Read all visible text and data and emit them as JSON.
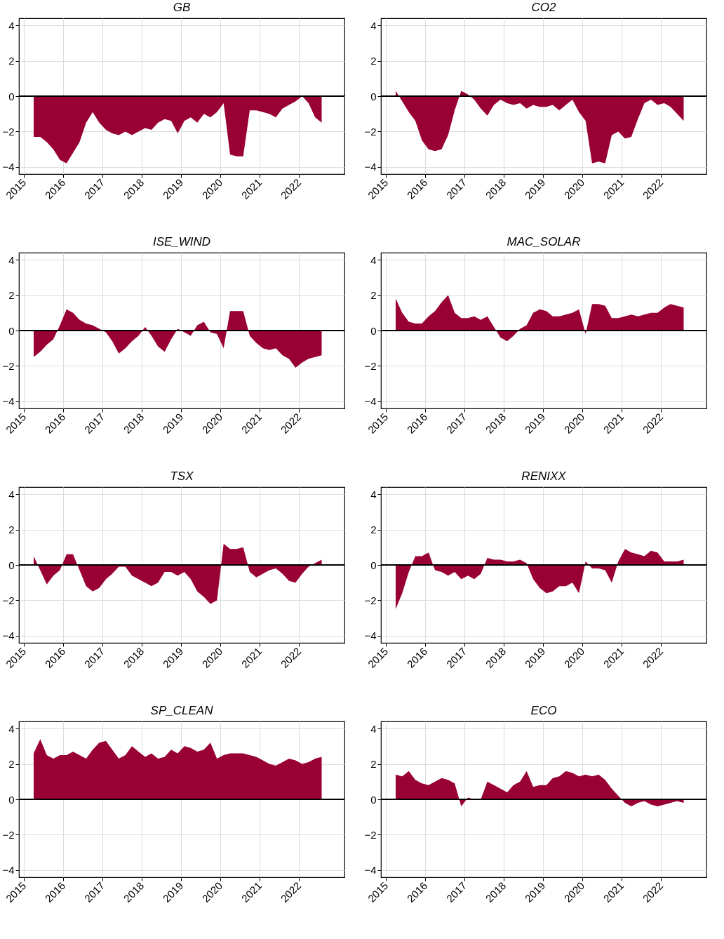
{
  "chart_data": [
    {
      "type": "area",
      "title": "GB",
      "x": [
        "2015-04",
        "2015-06",
        "2015-08",
        "2015-10",
        "2015-12",
        "2016-02",
        "2016-04",
        "2016-06",
        "2016-08",
        "2016-10",
        "2016-12",
        "2017-02",
        "2017-04",
        "2017-06",
        "2017-08",
        "2017-10",
        "2017-12",
        "2018-02",
        "2018-04",
        "2018-06",
        "2018-08",
        "2018-10",
        "2018-12",
        "2019-02",
        "2019-04",
        "2019-06",
        "2019-08",
        "2019-10",
        "2019-12",
        "2020-02",
        "2020-04",
        "2020-06",
        "2020-08",
        "2020-10",
        "2020-12",
        "2021-02",
        "2021-04",
        "2021-06",
        "2021-08",
        "2021-10",
        "2021-12",
        "2022-02",
        "2022-04",
        "2022-06",
        "2022-08"
      ],
      "series": [
        {
          "color": "#990033",
          "values": [
            -2.3,
            -2.3,
            -2.6,
            -3.0,
            -3.6,
            -3.8,
            -3.2,
            -2.6,
            -1.5,
            -0.9,
            -1.5,
            -1.9,
            -2.1,
            -2.2,
            -2.0,
            -2.2,
            -2.0,
            -1.8,
            -1.9,
            -1.5,
            -1.3,
            -1.4,
            -2.1,
            -1.4,
            -1.2,
            -1.5,
            -1.0,
            -1.2,
            -0.9,
            -0.4,
            -3.3,
            -3.4,
            -3.4,
            -0.8,
            -0.8,
            -0.9,
            -1.0,
            -1.2,
            -0.7,
            -0.5,
            -0.3,
            0.0,
            -0.4,
            -1.2,
            -1.5
          ]
        }
      ],
      "xlim": [
        "2014-11-15",
        "2023-03-01"
      ],
      "xticks": [
        "2015",
        "2016",
        "2017",
        "2018",
        "2019",
        "2020",
        "2021",
        "2022"
      ],
      "ylim": [
        -4.4,
        4.4
      ],
      "yticks": [
        -4,
        -2,
        0,
        2,
        4
      ],
      "grid": true,
      "ref_lines": [
        {
          "axis": "y",
          "value": 0,
          "color": "#000000"
        }
      ]
    },
    {
      "type": "area",
      "title": "CO2",
      "x": [
        "2015-04",
        "2015-06",
        "2015-08",
        "2015-10",
        "2015-12",
        "2016-02",
        "2016-04",
        "2016-06",
        "2016-08",
        "2016-10",
        "2016-12",
        "2017-02",
        "2017-04",
        "2017-06",
        "2017-08",
        "2017-10",
        "2017-12",
        "2018-02",
        "2018-04",
        "2018-06",
        "2018-08",
        "2018-10",
        "2018-12",
        "2019-02",
        "2019-04",
        "2019-06",
        "2019-08",
        "2019-10",
        "2019-12",
        "2020-02",
        "2020-04",
        "2020-06",
        "2020-08",
        "2020-10",
        "2020-12",
        "2021-02",
        "2021-04",
        "2021-06",
        "2021-08",
        "2021-10",
        "2021-12",
        "2022-02",
        "2022-04",
        "2022-06",
        "2022-08"
      ],
      "series": [
        {
          "color": "#990033",
          "values": [
            0.3,
            -0.3,
            -0.9,
            -1.4,
            -2.5,
            -3.0,
            -3.1,
            -3.0,
            -2.2,
            -0.8,
            0.3,
            0.1,
            -0.2,
            -0.7,
            -1.1,
            -0.5,
            -0.2,
            -0.4,
            -0.5,
            -0.4,
            -0.7,
            -0.5,
            -0.6,
            -0.6,
            -0.5,
            -0.8,
            -0.5,
            -0.2,
            -0.9,
            -1.4,
            -3.8,
            -3.7,
            -3.8,
            -2.2,
            -2.0,
            -2.4,
            -2.3,
            -1.3,
            -0.4,
            -0.2,
            -0.5,
            -0.4,
            -0.6,
            -1.0,
            -1.4
          ]
        }
      ],
      "xlim": [
        "2014-11-15",
        "2023-03-01"
      ],
      "xticks": [
        "2015",
        "2016",
        "2017",
        "2018",
        "2019",
        "2020",
        "2021",
        "2022"
      ],
      "ylim": [
        -4.4,
        4.4
      ],
      "yticks": [
        -4,
        -2,
        0,
        2,
        4
      ],
      "grid": true,
      "ref_lines": [
        {
          "axis": "y",
          "value": 0,
          "color": "#000000"
        }
      ]
    },
    {
      "type": "area",
      "title": "ISE_WIND",
      "x": [
        "2015-04",
        "2015-06",
        "2015-08",
        "2015-10",
        "2015-12",
        "2016-02",
        "2016-04",
        "2016-06",
        "2016-08",
        "2016-10",
        "2016-12",
        "2017-02",
        "2017-04",
        "2017-06",
        "2017-08",
        "2017-10",
        "2017-12",
        "2018-02",
        "2018-04",
        "2018-06",
        "2018-08",
        "2018-10",
        "2018-12",
        "2019-02",
        "2019-04",
        "2019-06",
        "2019-08",
        "2019-10",
        "2019-12",
        "2020-02",
        "2020-04",
        "2020-06",
        "2020-08",
        "2020-10",
        "2020-12",
        "2021-02",
        "2021-04",
        "2021-06",
        "2021-08",
        "2021-10",
        "2021-12",
        "2022-02",
        "2022-04",
        "2022-06",
        "2022-08"
      ],
      "series": [
        {
          "color": "#990033",
          "values": [
            -1.5,
            -1.2,
            -0.8,
            -0.5,
            0.3,
            1.2,
            1.0,
            0.6,
            0.4,
            0.3,
            0.1,
            -0.1,
            -0.6,
            -1.3,
            -1.0,
            -0.6,
            -0.3,
            0.2,
            -0.3,
            -0.9,
            -1.2,
            -0.5,
            0.1,
            -0.1,
            -0.3,
            0.3,
            0.5,
            -0.1,
            -0.2,
            -1.0,
            1.1,
            1.1,
            1.1,
            -0.3,
            -0.7,
            -1.0,
            -1.1,
            -1.0,
            -1.4,
            -1.6,
            -2.1,
            -1.8,
            -1.6,
            -1.5,
            -1.4
          ]
        }
      ],
      "xlim": [
        "2014-11-15",
        "2023-03-01"
      ],
      "xticks": [
        "2015",
        "2016",
        "2017",
        "2018",
        "2019",
        "2020",
        "2021",
        "2022"
      ],
      "ylim": [
        -4.4,
        4.4
      ],
      "yticks": [
        -4,
        -2,
        0,
        2,
        4
      ],
      "grid": true,
      "ref_lines": [
        {
          "axis": "y",
          "value": 0,
          "color": "#000000"
        }
      ]
    },
    {
      "type": "area",
      "title": "MAC_SOLAR",
      "x": [
        "2015-04",
        "2015-06",
        "2015-08",
        "2015-10",
        "2015-12",
        "2016-02",
        "2016-04",
        "2016-06",
        "2016-08",
        "2016-10",
        "2016-12",
        "2017-02",
        "2017-04",
        "2017-06",
        "2017-08",
        "2017-10",
        "2017-12",
        "2018-02",
        "2018-04",
        "2018-06",
        "2018-08",
        "2018-10",
        "2018-12",
        "2019-02",
        "2019-04",
        "2019-06",
        "2019-08",
        "2019-10",
        "2019-12",
        "2020-02",
        "2020-04",
        "2020-06",
        "2020-08",
        "2020-10",
        "2020-12",
        "2021-02",
        "2021-04",
        "2021-06",
        "2021-08",
        "2021-10",
        "2021-12",
        "2022-02",
        "2022-04",
        "2022-06",
        "2022-08"
      ],
      "series": [
        {
          "color": "#990033",
          "values": [
            1.8,
            1.0,
            0.5,
            0.4,
            0.4,
            0.8,
            1.1,
            1.6,
            2.0,
            1.0,
            0.7,
            0.7,
            0.8,
            0.6,
            0.8,
            0.2,
            -0.4,
            -0.6,
            -0.3,
            0.1,
            0.3,
            1.0,
            1.2,
            1.1,
            0.8,
            0.8,
            0.9,
            1.0,
            1.2,
            -0.2,
            1.5,
            1.5,
            1.4,
            0.7,
            0.7,
            0.8,
            0.9,
            0.8,
            0.9,
            1.0,
            1.0,
            1.3,
            1.5,
            1.4,
            1.3
          ]
        }
      ],
      "xlim": [
        "2014-11-15",
        "2023-03-01"
      ],
      "xticks": [
        "2015",
        "2016",
        "2017",
        "2018",
        "2019",
        "2020",
        "2021",
        "2022"
      ],
      "ylim": [
        -4.4,
        4.4
      ],
      "yticks": [
        -4,
        -2,
        0,
        2,
        4
      ],
      "grid": true,
      "ref_lines": [
        {
          "axis": "y",
          "value": 0,
          "color": "#000000"
        }
      ]
    },
    {
      "type": "area",
      "title": "TSX",
      "x": [
        "2015-04",
        "2015-06",
        "2015-08",
        "2015-10",
        "2015-12",
        "2016-02",
        "2016-04",
        "2016-06",
        "2016-08",
        "2016-10",
        "2016-12",
        "2017-02",
        "2017-04",
        "2017-06",
        "2017-08",
        "2017-10",
        "2017-12",
        "2018-02",
        "2018-04",
        "2018-06",
        "2018-08",
        "2018-10",
        "2018-12",
        "2019-02",
        "2019-04",
        "2019-06",
        "2019-08",
        "2019-10",
        "2019-12",
        "2020-02",
        "2020-04",
        "2020-06",
        "2020-08",
        "2020-10",
        "2020-12",
        "2021-02",
        "2021-04",
        "2021-06",
        "2021-08",
        "2021-10",
        "2021-12",
        "2022-02",
        "2022-04",
        "2022-06",
        "2022-08"
      ],
      "series": [
        {
          "color": "#990033",
          "values": [
            0.5,
            -0.3,
            -1.1,
            -0.6,
            -0.3,
            0.6,
            0.6,
            -0.3,
            -1.2,
            -1.5,
            -1.3,
            -0.8,
            -0.5,
            -0.1,
            -0.1,
            -0.6,
            -0.8,
            -1.0,
            -1.2,
            -1.0,
            -0.4,
            -0.4,
            -0.6,
            -0.4,
            -0.8,
            -1.5,
            -1.8,
            -2.2,
            -2.0,
            1.2,
            0.9,
            0.9,
            1.0,
            -0.4,
            -0.7,
            -0.5,
            -0.3,
            -0.2,
            -0.5,
            -0.9,
            -1.0,
            -0.5,
            -0.1,
            0.1,
            0.3
          ]
        }
      ],
      "xlim": [
        "2014-11-15",
        "2023-03-01"
      ],
      "xticks": [
        "2015",
        "2016",
        "2017",
        "2018",
        "2019",
        "2020",
        "2021",
        "2022"
      ],
      "ylim": [
        -4.4,
        4.4
      ],
      "yticks": [
        -4,
        -2,
        0,
        2,
        4
      ],
      "grid": true,
      "ref_lines": [
        {
          "axis": "y",
          "value": 0,
          "color": "#000000"
        }
      ]
    },
    {
      "type": "area",
      "title": "RENIXX",
      "x": [
        "2015-04",
        "2015-06",
        "2015-08",
        "2015-10",
        "2015-12",
        "2016-02",
        "2016-04",
        "2016-06",
        "2016-08",
        "2016-10",
        "2016-12",
        "2017-02",
        "2017-04",
        "2017-06",
        "2017-08",
        "2017-10",
        "2017-12",
        "2018-02",
        "2018-04",
        "2018-06",
        "2018-08",
        "2018-10",
        "2018-12",
        "2019-02",
        "2019-04",
        "2019-06",
        "2019-08",
        "2019-10",
        "2019-12",
        "2020-02",
        "2020-04",
        "2020-06",
        "2020-08",
        "2020-10",
        "2020-12",
        "2021-02",
        "2021-04",
        "2021-06",
        "2021-08",
        "2021-10",
        "2021-12",
        "2022-02",
        "2022-04",
        "2022-06",
        "2022-08"
      ],
      "series": [
        {
          "color": "#990033",
          "values": [
            -2.5,
            -1.6,
            -0.4,
            0.5,
            0.5,
            0.7,
            -0.3,
            -0.4,
            -0.6,
            -0.4,
            -0.8,
            -0.6,
            -0.8,
            -0.5,
            0.4,
            0.3,
            0.3,
            0.2,
            0.2,
            0.3,
            0.1,
            -0.8,
            -1.3,
            -1.6,
            -1.5,
            -1.2,
            -1.2,
            -1.0,
            -1.6,
            0.2,
            -0.2,
            -0.2,
            -0.3,
            -1.0,
            0.2,
            0.9,
            0.7,
            0.6,
            0.5,
            0.8,
            0.7,
            0.2,
            0.2,
            0.2,
            0.3
          ]
        }
      ],
      "xlim": [
        "2014-11-15",
        "2023-03-01"
      ],
      "xticks": [
        "2015",
        "2016",
        "2017",
        "2018",
        "2019",
        "2020",
        "2021",
        "2022"
      ],
      "ylim": [
        -4.4,
        4.4
      ],
      "yticks": [
        -4,
        -2,
        0,
        2,
        4
      ],
      "grid": true,
      "ref_lines": [
        {
          "axis": "y",
          "value": 0,
          "color": "#000000"
        }
      ]
    },
    {
      "type": "area",
      "title": "SP_CLEAN",
      "x": [
        "2015-04",
        "2015-06",
        "2015-08",
        "2015-10",
        "2015-12",
        "2016-02",
        "2016-04",
        "2016-06",
        "2016-08",
        "2016-10",
        "2016-12",
        "2017-02",
        "2017-04",
        "2017-06",
        "2017-08",
        "2017-10",
        "2017-12",
        "2018-02",
        "2018-04",
        "2018-06",
        "2018-08",
        "2018-10",
        "2018-12",
        "2019-02",
        "2019-04",
        "2019-06",
        "2019-08",
        "2019-10",
        "2019-12",
        "2020-02",
        "2020-04",
        "2020-06",
        "2020-08",
        "2020-10",
        "2020-12",
        "2021-02",
        "2021-04",
        "2021-06",
        "2021-08",
        "2021-10",
        "2021-12",
        "2022-02",
        "2022-04",
        "2022-06",
        "2022-08"
      ],
      "series": [
        {
          "color": "#990033",
          "values": [
            2.6,
            3.4,
            2.5,
            2.3,
            2.5,
            2.5,
            2.7,
            2.5,
            2.3,
            2.8,
            3.2,
            3.3,
            2.8,
            2.3,
            2.5,
            3.0,
            2.7,
            2.4,
            2.6,
            2.3,
            2.4,
            2.8,
            2.6,
            3.0,
            2.9,
            2.7,
            2.8,
            3.2,
            2.3,
            2.5,
            2.6,
            2.6,
            2.6,
            2.5,
            2.4,
            2.2,
            2.0,
            1.9,
            2.1,
            2.3,
            2.2,
            2.0,
            2.1,
            2.3,
            2.4
          ]
        }
      ],
      "xlim": [
        "2014-11-15",
        "2023-03-01"
      ],
      "xticks": [
        "2015",
        "2016",
        "2017",
        "2018",
        "2019",
        "2020",
        "2021",
        "2022"
      ],
      "ylim": [
        -4.4,
        4.4
      ],
      "yticks": [
        -4,
        -2,
        0,
        2,
        4
      ],
      "grid": true,
      "ref_lines": [
        {
          "axis": "y",
          "value": 0,
          "color": "#000000"
        }
      ]
    },
    {
      "type": "area",
      "title": "ECO",
      "x": [
        "2015-04",
        "2015-06",
        "2015-08",
        "2015-10",
        "2015-12",
        "2016-02",
        "2016-04",
        "2016-06",
        "2016-08",
        "2016-10",
        "2016-12",
        "2017-02",
        "2017-04",
        "2017-06",
        "2017-08",
        "2017-10",
        "2017-12",
        "2018-02",
        "2018-04",
        "2018-06",
        "2018-08",
        "2018-10",
        "2018-12",
        "2019-02",
        "2019-04",
        "2019-06",
        "2019-08",
        "2019-10",
        "2019-12",
        "2020-02",
        "2020-04",
        "2020-06",
        "2020-08",
        "2020-10",
        "2020-12",
        "2021-02",
        "2021-04",
        "2021-06",
        "2021-08",
        "2021-10",
        "2021-12",
        "2022-02",
        "2022-04",
        "2022-06",
        "2022-08"
      ],
      "series": [
        {
          "color": "#990033",
          "values": [
            1.4,
            1.3,
            1.6,
            1.1,
            0.9,
            0.8,
            1.0,
            1.2,
            1.1,
            0.9,
            -0.4,
            0.1,
            0.0,
            0.0,
            1.0,
            0.8,
            0.6,
            0.4,
            0.8,
            1.0,
            1.6,
            0.7,
            0.8,
            0.8,
            1.2,
            1.3,
            1.6,
            1.5,
            1.3,
            1.4,
            1.3,
            1.4,
            1.1,
            0.6,
            0.2,
            -0.2,
            -0.4,
            -0.2,
            -0.1,
            -0.3,
            -0.4,
            -0.3,
            -0.2,
            -0.1,
            -0.2
          ]
        }
      ],
      "xlim": [
        "2014-11-15",
        "2023-03-01"
      ],
      "xticks": [
        "2015",
        "2016",
        "2017",
        "2018",
        "2019",
        "2020",
        "2021",
        "2022"
      ],
      "ylim": [
        -4.4,
        4.4
      ],
      "yticks": [
        -4,
        -2,
        0,
        2,
        4
      ],
      "grid": true,
      "ref_lines": [
        {
          "axis": "y",
          "value": 0,
          "color": "#000000"
        }
      ]
    }
  ]
}
